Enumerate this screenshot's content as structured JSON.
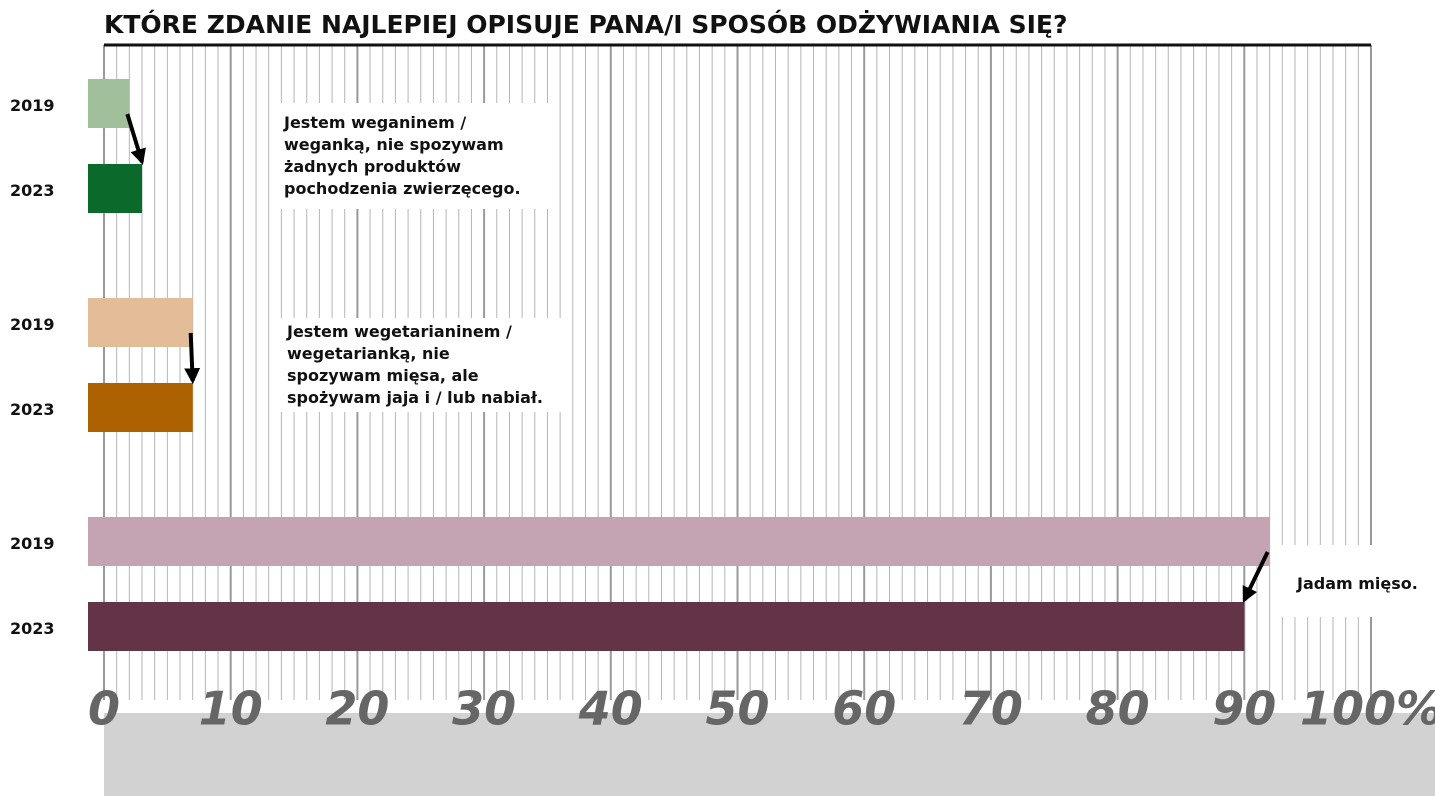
{
  "chart_data": {
    "type": "bar",
    "orientation": "horizontal",
    "title": "KTÓRE ZDANIE NAJLEPIEJ OPISUJE PANA/I SPOSÓB ODŻYWIANIA SIĘ?",
    "categories": [
      "Jestem weganinem / weganką, nie spozywam żadnych produktów pochodzenia zwierzęcego.",
      "Jestem wegetarianinem / wegetarianką, nie spozywam mięsa, ale spożywam jaja i / lub nabiał.",
      "Jadam mięso."
    ],
    "series": [
      {
        "name": "2019",
        "colors": [
          "#a2bf9c",
          "#e2bd98",
          "#c4a4b3"
        ],
        "values": [
          2,
          7,
          92
        ]
      },
      {
        "name": "2023",
        "colors": [
          "#0b6a2b",
          "#ad6200",
          "#633447"
        ],
        "values": [
          3,
          7,
          90
        ]
      }
    ],
    "xlim": [
      0,
      100
    ],
    "xticks": [
      0,
      10,
      20,
      30,
      40,
      50,
      60,
      70,
      80,
      90,
      {
        "value": 100,
        "label": "100%"
      }
    ],
    "grid": true,
    "minor_grid": true
  }
}
